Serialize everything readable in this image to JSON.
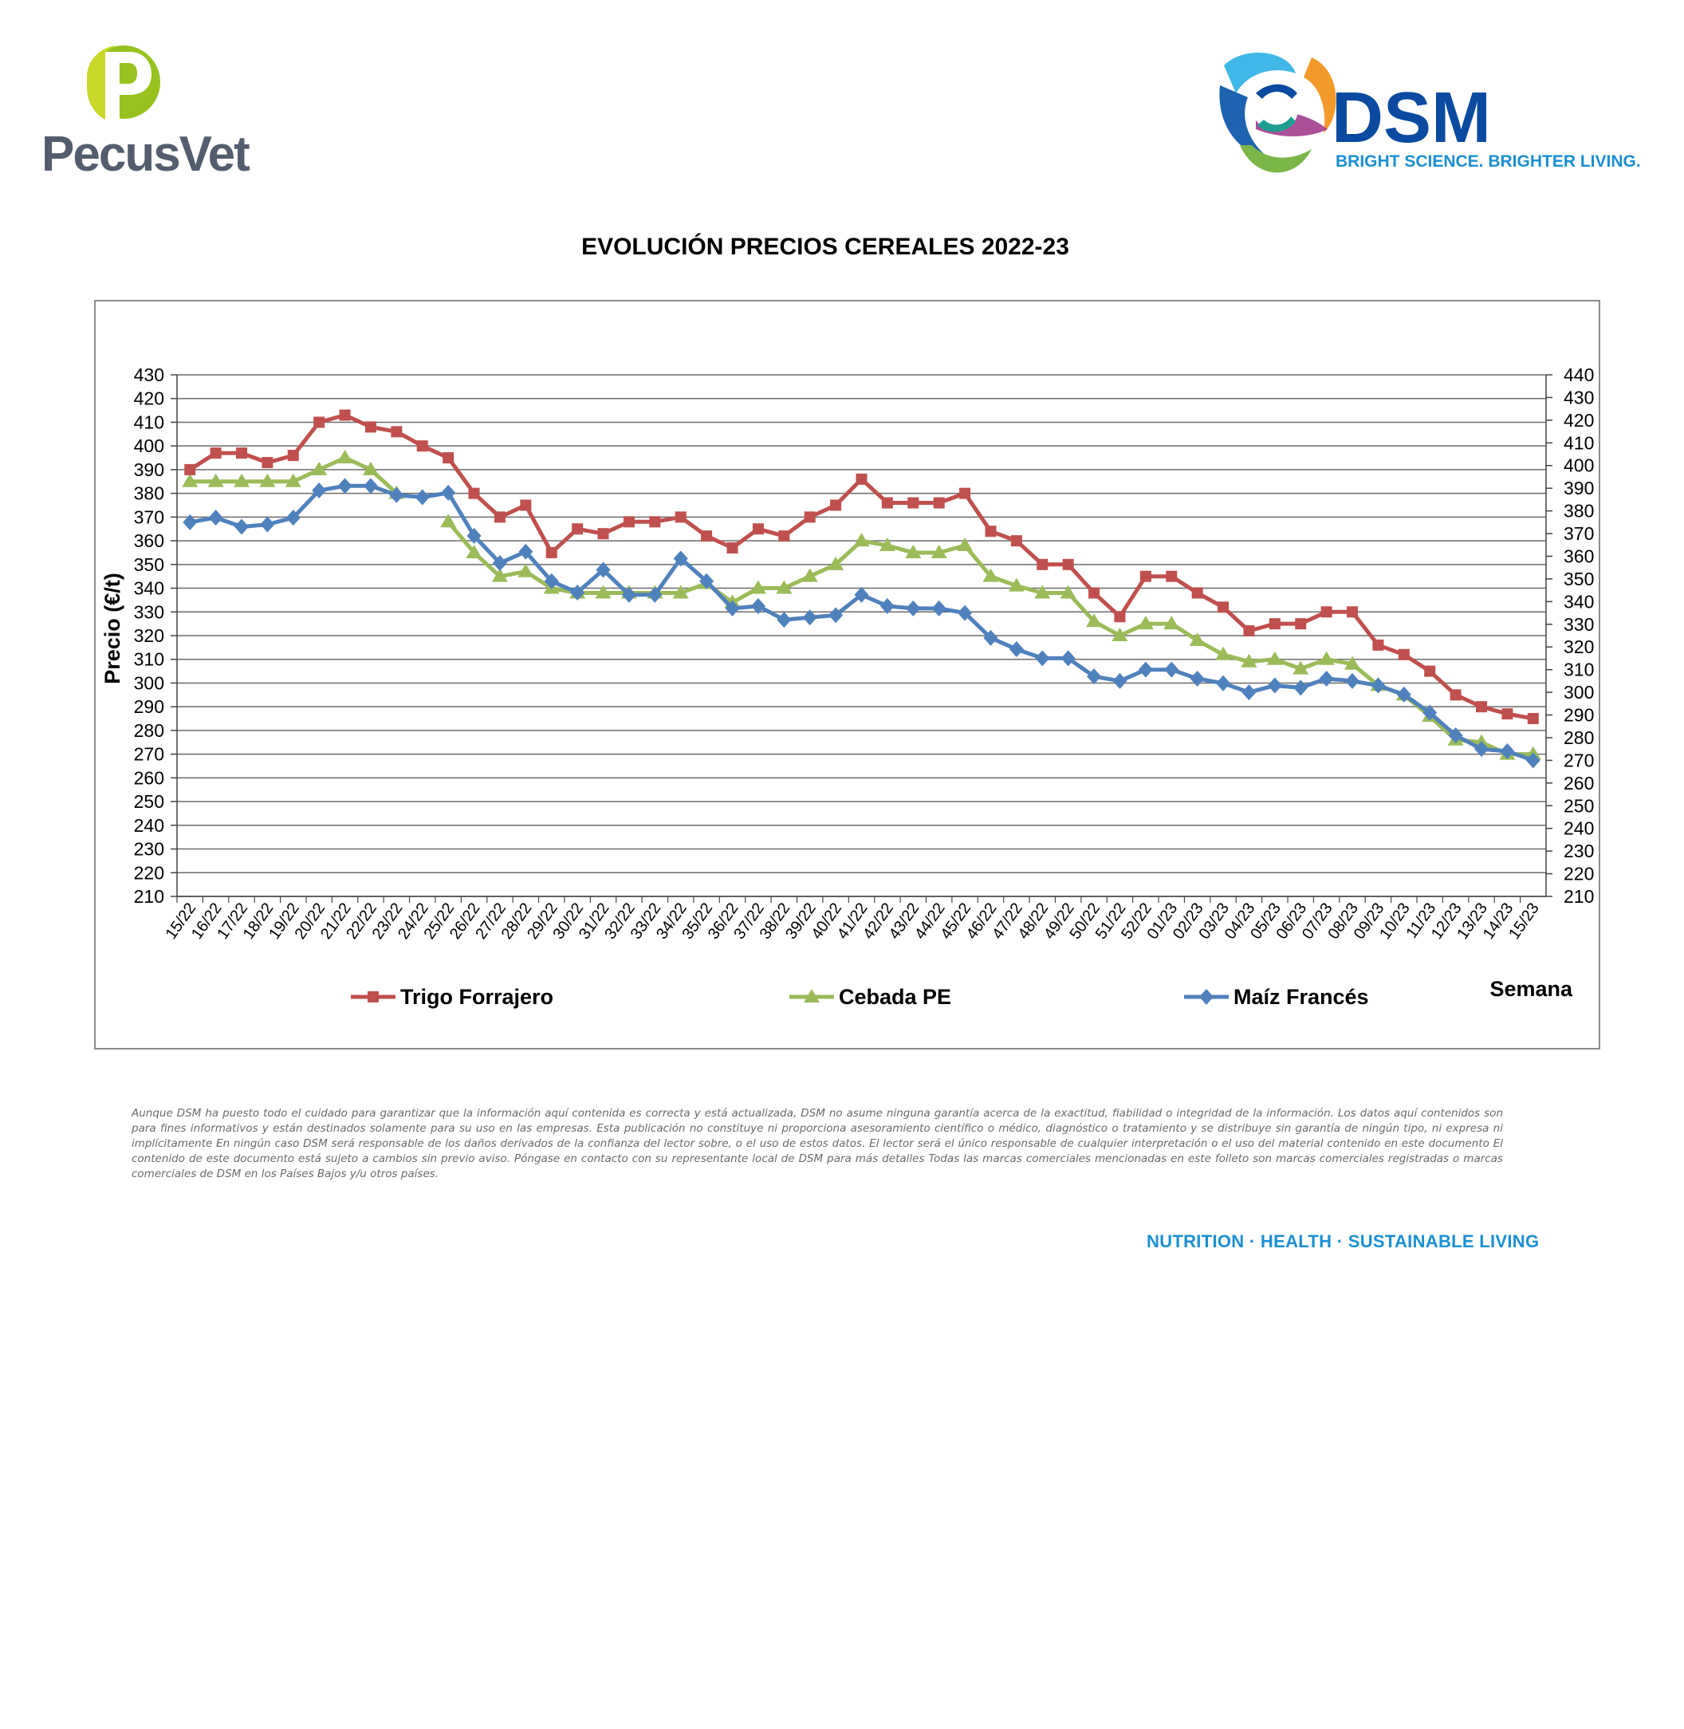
{
  "header": {
    "pecus_brand": "PecusVet",
    "dsm_brand": "DSM",
    "dsm_tagline": "BRIGHT SCIENCE. BRIGHTER LIVING.",
    "title": "EVOLUCIÓN PRECIOS CEREALES 2022-23"
  },
  "colors": {
    "trigo": "#c0504d",
    "cebada": "#9bbb59",
    "maiz": "#4f81bd",
    "grid": "#6b6b6b"
  },
  "chart_data": {
    "type": "line",
    "title": "",
    "xlabel": "Semana",
    "ylabel": "Precio (€/t)",
    "ylim": [
      210,
      430
    ],
    "ylim_right": [
      210,
      440
    ],
    "y_ticks": [
      210,
      220,
      230,
      240,
      250,
      260,
      270,
      280,
      290,
      300,
      310,
      320,
      330,
      340,
      350,
      360,
      370,
      380,
      390,
      400,
      410,
      420,
      430
    ],
    "y_ticks_right": [
      210,
      220,
      230,
      240,
      250,
      260,
      270,
      280,
      290,
      300,
      310,
      320,
      330,
      340,
      350,
      360,
      370,
      380,
      390,
      400,
      410,
      420,
      430,
      440
    ],
    "grid": true,
    "legend": "bottom",
    "categories": [
      "15/22",
      "16/22",
      "17/22",
      "18/22",
      "19/22",
      "20/22",
      "21/22",
      "22/22",
      "23/22",
      "24/22",
      "25/22",
      "26/22",
      "27/22",
      "28/22",
      "29/22",
      "30/22",
      "31/22",
      "32/22",
      "33/22",
      "34/22",
      "35/22",
      "36/22",
      "37/22",
      "38/22",
      "39/22",
      "40/22",
      "41/22",
      "42/22",
      "43/22",
      "44/22",
      "45/22",
      "46/22",
      "47/22",
      "48/22",
      "49/22",
      "50/22",
      "51/22",
      "52/22",
      "01/23",
      "02/23",
      "03/23",
      "04/23",
      "05/23",
      "06/23",
      "07/23",
      "08/23",
      "09/23",
      "10/23",
      "11/23",
      "12/23",
      "13/23",
      "14/23",
      "15/23"
    ],
    "series": [
      {
        "name": "Trigo Forrajero",
        "marker": "square",
        "axis": "left",
        "values": [
          390,
          397,
          397,
          393,
          396,
          410,
          413,
          408,
          406,
          400,
          395,
          380,
          370,
          375,
          355,
          365,
          363,
          368,
          368,
          370,
          362,
          357,
          365,
          362,
          370,
          375,
          386,
          376,
          376,
          376,
          380,
          364,
          360,
          350,
          350,
          338,
          328,
          345,
          345,
          338,
          332,
          322,
          325,
          325,
          330,
          330,
          316,
          312,
          305,
          295,
          290,
          287,
          285
        ]
      },
      {
        "name": "Cebada PE",
        "marker": "triangle",
        "axis": "left",
        "values": [
          385,
          385,
          385,
          385,
          385,
          390,
          395,
          390,
          380,
          null,
          368,
          355,
          345,
          347,
          340,
          338,
          338,
          338,
          338,
          338,
          342,
          334,
          340,
          340,
          345,
          350,
          360,
          358,
          355,
          355,
          358,
          345,
          341,
          338,
          338,
          326,
          320,
          325,
          325,
          318,
          312,
          309,
          310,
          306,
          310,
          308,
          299,
          295,
          286,
          276,
          275,
          270,
          270
        ]
      },
      {
        "name": "Maíz Francés",
        "marker": "diamond",
        "axis": "right",
        "values": [
          375,
          377,
          373,
          374,
          377,
          389,
          391,
          391,
          387,
          386,
          388,
          369,
          357,
          362,
          349,
          344,
          354,
          343,
          343,
          359,
          349,
          337,
          338,
          332,
          333,
          334,
          343,
          338,
          337,
          337,
          335,
          324,
          319,
          315,
          315,
          307,
          305,
          310,
          310,
          306,
          304,
          300,
          303,
          302,
          306,
          305,
          303,
          299,
          291,
          281,
          275,
          274,
          270
        ]
      }
    ]
  },
  "footer": {
    "disclaimer": "Aunque DSM ha puesto todo el cuidado para garantizar que la información aquí contenida es correcta y está actualizada, DSM no asume ninguna garantía acerca de la exactitud, fiabilidad o integridad de la información. Los datos aquí contenidos son para fines informativos y están destinados solamente para su uso en las empresas. Esta publicación no constituye ni proporciona asesoramiento científico o médico, diagnóstico o tratamiento y se distribuye sin garantía de ningún tipo, ni expresa ni implícitamente En ningún caso DSM será responsable de los daños derivados de la confianza del lector sobre, o el uso de estos datos. El lector será el único responsable de cualquier interpretación o el uso del material contenido en este documento El contenido de este documento está sujeto a cambios sin previo aviso. Póngase en contacto con su representante local de DSM para más detalles Todas las marcas comerciales mencionadas en este folleto son marcas comerciales registradas o marcas comerciales de DSM en los Países Bajos y/u otros países.",
    "tagline": "NUTRITION · HEALTH · SUSTAINABLE LIVING"
  }
}
